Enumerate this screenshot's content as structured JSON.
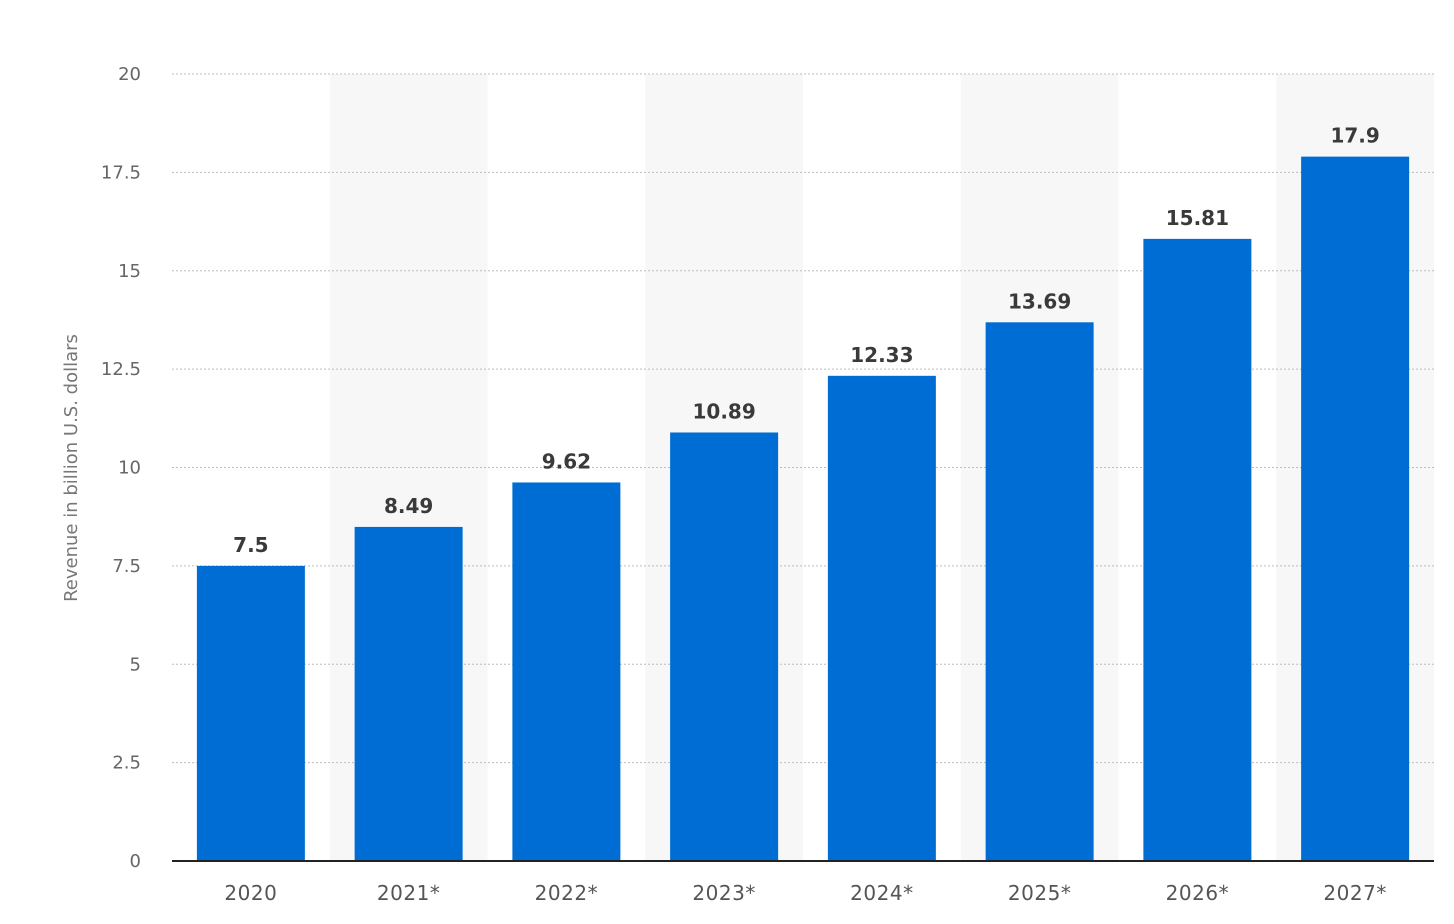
{
  "chart_data": {
    "type": "bar",
    "title": "",
    "xlabel": "",
    "ylabel": "Revenue in billion U.S. dollars",
    "categories": [
      "2020",
      "2021*",
      "2022*",
      "2023*",
      "2024*",
      "2025*",
      "2026*",
      "2027*"
    ],
    "values": [
      7.5,
      8.49,
      9.62,
      10.89,
      12.33,
      13.69,
      15.81,
      17.9
    ],
    "value_labels": [
      "7.5",
      "8.49",
      "9.62",
      "10.89",
      "12.33",
      "13.69",
      "15.81",
      "17.9"
    ],
    "ylim": [
      0,
      20
    ],
    "yticks": [
      0,
      2.5,
      5,
      7.5,
      10,
      12.5,
      15,
      17.5,
      20
    ],
    "ytick_labels": [
      "0",
      "2.5",
      "5",
      "7.5",
      "10",
      "12.5",
      "15",
      "17.5",
      "20"
    ],
    "grid": true,
    "alternating_column_shading": true,
    "colors": {
      "bar": "#006dd4",
      "shade": "#f7f7f7",
      "grid": "#bdbdbd",
      "axis": "#222222"
    }
  }
}
